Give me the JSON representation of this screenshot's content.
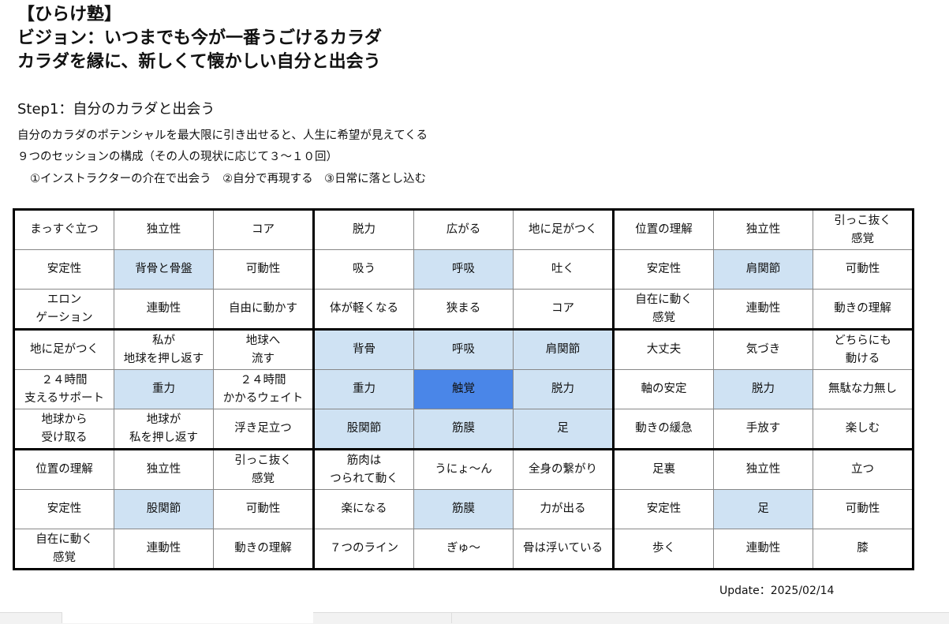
{
  "header": {
    "title": "【ひらけ塾】",
    "vision": "ビジョン：いつまでも今が一番うごけるカラダ",
    "tagline": "カラダを縁に、新しくて懐かしい自分と出会う"
  },
  "step": {
    "title": "Step1：自分のカラダと出会う",
    "line1": "自分のカラダのポテンシャルを最大限に引き出せると、人生に希望が見えてくる",
    "line2": "９つのセッションの構成（その人の現状に応じて３〜１０回）",
    "line3": "①インストラクターの介在で出会う　②自分で再現する　③日常に落とし込む"
  },
  "colors": {
    "light": "#cfe2f3",
    "dark": "#4a86e8"
  },
  "grid": [
    [
      [
        "まっすぐ立つ",
        ""
      ],
      [
        "独立性",
        ""
      ],
      [
        "コア",
        ""
      ],
      [
        "脱力",
        ""
      ],
      [
        "広がる",
        ""
      ],
      [
        "地に足がつく",
        ""
      ],
      [
        "位置の理解",
        ""
      ],
      [
        "独立性",
        ""
      ],
      [
        "引っこ抜く\n感覚",
        ""
      ]
    ],
    [
      [
        "安定性",
        ""
      ],
      [
        "背骨と骨盤",
        "light"
      ],
      [
        "可動性",
        ""
      ],
      [
        "吸う",
        ""
      ],
      [
        "呼吸",
        "light"
      ],
      [
        "吐く",
        ""
      ],
      [
        "安定性",
        ""
      ],
      [
        "肩関節",
        "light"
      ],
      [
        "可動性",
        ""
      ]
    ],
    [
      [
        "エロン\nゲーション",
        ""
      ],
      [
        "連動性",
        ""
      ],
      [
        "自由に動かす",
        ""
      ],
      [
        "体が軽くなる",
        ""
      ],
      [
        "狭まる",
        ""
      ],
      [
        "コア",
        ""
      ],
      [
        "自在に動く\n感覚",
        ""
      ],
      [
        "連動性",
        ""
      ],
      [
        "動きの理解",
        ""
      ]
    ],
    [
      [
        "地に足がつく",
        ""
      ],
      [
        "私が\n地球を押し返す",
        ""
      ],
      [
        "地球へ\n流す",
        ""
      ],
      [
        "背骨",
        "light"
      ],
      [
        "呼吸",
        "light"
      ],
      [
        "肩関節",
        "light"
      ],
      [
        "大丈夫",
        ""
      ],
      [
        "気づき",
        ""
      ],
      [
        "どちらにも\n動ける",
        ""
      ]
    ],
    [
      [
        "２４時間\n支えるサポート",
        ""
      ],
      [
        "重力",
        "light"
      ],
      [
        "２４時間\nかかるウェイト",
        ""
      ],
      [
        "重力",
        "light"
      ],
      [
        "触覚",
        "dark"
      ],
      [
        "脱力",
        "light"
      ],
      [
        "軸の安定",
        ""
      ],
      [
        "脱力",
        "light"
      ],
      [
        "無駄な力無し",
        ""
      ]
    ],
    [
      [
        "地球から\n受け取る",
        ""
      ],
      [
        "地球が\n私を押し返す",
        ""
      ],
      [
        "浮き足立つ",
        ""
      ],
      [
        "股関節",
        "light"
      ],
      [
        "筋膜",
        "light"
      ],
      [
        "足",
        "light"
      ],
      [
        "動きの緩急",
        ""
      ],
      [
        "手放す",
        ""
      ],
      [
        "楽しむ",
        ""
      ]
    ],
    [
      [
        "位置の理解",
        ""
      ],
      [
        "独立性",
        ""
      ],
      [
        "引っこ抜く\n感覚",
        ""
      ],
      [
        "筋肉は\nつられて動く",
        ""
      ],
      [
        "うにょ〜ん",
        ""
      ],
      [
        "全身の繋がり",
        ""
      ],
      [
        "足裏",
        ""
      ],
      [
        "独立性",
        ""
      ],
      [
        "立つ",
        ""
      ]
    ],
    [
      [
        "安定性",
        ""
      ],
      [
        "股関節",
        "light"
      ],
      [
        "可動性",
        ""
      ],
      [
        "楽になる",
        ""
      ],
      [
        "筋膜",
        "light"
      ],
      [
        "力が出る",
        ""
      ],
      [
        "安定性",
        ""
      ],
      [
        "足",
        "light"
      ],
      [
        "可動性",
        ""
      ]
    ],
    [
      [
        "自在に動く\n感覚",
        ""
      ],
      [
        "連動性",
        ""
      ],
      [
        "動きの理解",
        ""
      ],
      [
        "７つのライン",
        ""
      ],
      [
        "ぎゅ〜",
        ""
      ],
      [
        "骨は浮いている",
        ""
      ],
      [
        "歩く",
        ""
      ],
      [
        "連動性",
        ""
      ],
      [
        "膝",
        ""
      ]
    ]
  ],
  "update": "Update：2025/02/14"
}
